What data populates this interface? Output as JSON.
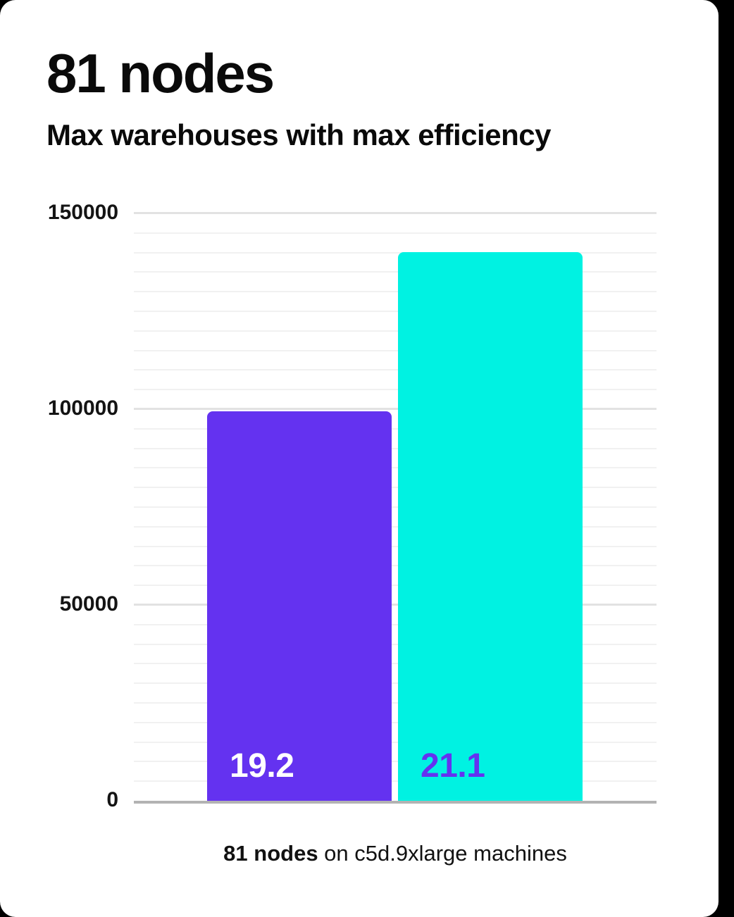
{
  "page": {
    "background_color": "#000000",
    "card_color": "#ffffff"
  },
  "header": {
    "title": "81 nodes",
    "subtitle": "Max warehouses with max efficiency"
  },
  "chart_data": {
    "type": "bar",
    "title": "81 nodes",
    "subtitle": "Max warehouses with max efficiency",
    "xlabel": "",
    "ylabel": "",
    "ylim": [
      0,
      150000
    ],
    "ytick_step": 50000,
    "minor_grid_step": 5000,
    "grid": "horizontal",
    "legend": "none",
    "yticks": [
      {
        "label": "150000",
        "value": 150000
      },
      {
        "label": "100000",
        "value": 100000
      },
      {
        "label": "50000",
        "value": 50000
      },
      {
        "label": "0",
        "value": 0
      }
    ],
    "bars": [
      {
        "label": "19.2",
        "value": 99500,
        "color": "#6432f0",
        "label_color": "#ffffff"
      },
      {
        "label": "21.1",
        "value": 140100,
        "color": "#00f2e2",
        "label_color": "#6432f0"
      }
    ],
    "caption": "81 nodes on c5d.9xlarge machines"
  },
  "caption": {
    "bold": "81 nodes",
    "rest": " on c5d.9xlarge machines"
  },
  "colors": {
    "accent_purple": "#6432f0",
    "accent_cyan": "#00f2e2",
    "grid_minor": "#f1f1f1",
    "grid_major": "#e2e2e2",
    "axis_line": "#b3b3b3",
    "text": "#0a0a0a"
  }
}
